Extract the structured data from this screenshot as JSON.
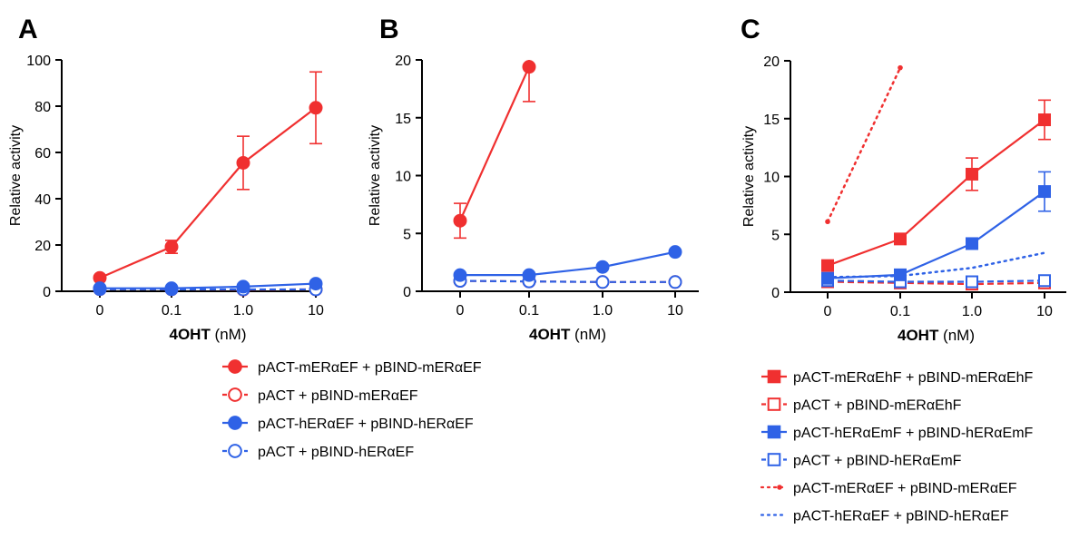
{
  "colors": {
    "red": "#f03030",
    "blue": "#2f62e6",
    "axis": "#000000"
  },
  "chart_data": [
    {
      "panel": "A",
      "type": "line",
      "categories": [
        "0",
        "0.1",
        "1.0",
        "10"
      ],
      "xlabel_bold": "4OHT",
      "xlabel_unit": " (nM)",
      "ylabel": "Relative activity",
      "ylim": [
        0,
        100
      ],
      "yticks": [
        0,
        20,
        40,
        60,
        80,
        100
      ],
      "series": [
        {
          "name": "pACT-mERαEF + pBIND-mERαEF",
          "color": "red",
          "style": "solid",
          "marker": "circle",
          "filled": true,
          "values": [
            5.8,
            19.2,
            55.5,
            79.3
          ],
          "errors": [
            0.8,
            2.8,
            11.5,
            15.5
          ]
        },
        {
          "name": "pACT + pBIND-mERαEF",
          "color": "red",
          "style": "dashed",
          "marker": "circle",
          "filled": false,
          "values": [
            0.9,
            0.85,
            0.7,
            0.8
          ],
          "errors": [
            0,
            0,
            0,
            0
          ]
        },
        {
          "name": "pACT-hERαEF + pBIND-hERαEF",
          "color": "blue",
          "style": "solid",
          "marker": "circle",
          "filled": true,
          "values": [
            1.3,
            1.3,
            2.0,
            3.3
          ],
          "errors": [
            0,
            0,
            0,
            0
          ]
        },
        {
          "name": "pACT + pBIND-hERαEF",
          "color": "blue",
          "style": "dashed",
          "marker": "circle",
          "filled": false,
          "values": [
            0.9,
            0.85,
            0.8,
            0.8
          ],
          "errors": [
            0,
            0,
            0,
            0
          ]
        }
      ]
    },
    {
      "panel": "B",
      "type": "line",
      "categories": [
        "0",
        "0.1",
        "1.0",
        "10"
      ],
      "xlabel_bold": "4OHT",
      "xlabel_unit": " (nM)",
      "ylabel": "Relative activity",
      "ylim": [
        0,
        20
      ],
      "yticks": [
        0,
        5,
        10,
        15,
        20
      ],
      "series": [
        {
          "name": "pACT-mERαEF + pBIND-mERαEF",
          "color": "red",
          "style": "solid",
          "marker": "circle",
          "filled": true,
          "values": [
            6.1,
            19.4,
            null,
            null
          ],
          "errors": [
            1.5,
            3.0,
            0,
            0
          ]
        },
        {
          "name": "pACT + pBIND-mERαEF",
          "color": "red",
          "style": "dashed",
          "marker": "circle",
          "filled": false,
          "values": [
            0.9,
            0.85,
            0.8,
            0.8
          ],
          "errors": [
            0,
            0,
            0,
            0
          ]
        },
        {
          "name": "pACT-hERαEF + pBIND-hERαEF",
          "color": "blue",
          "style": "solid",
          "marker": "circle",
          "filled": true,
          "values": [
            1.4,
            1.4,
            2.1,
            3.4
          ],
          "errors": [
            0,
            0,
            0,
            0
          ]
        },
        {
          "name": "pACT + pBIND-hERαEF",
          "color": "blue",
          "style": "dashed",
          "marker": "circle",
          "filled": false,
          "values": [
            0.9,
            0.85,
            0.8,
            0.8
          ],
          "errors": [
            0,
            0,
            0,
            0
          ]
        }
      ]
    },
    {
      "panel": "C",
      "type": "line",
      "categories": [
        "0",
        "0.1",
        "1.0",
        "10"
      ],
      "xlabel_bold": "4OHT",
      "xlabel_unit": " (nM)",
      "ylabel": "Relative activity",
      "ylim": [
        0,
        20
      ],
      "yticks": [
        0,
        5,
        10,
        15,
        20
      ],
      "series": [
        {
          "name": "pACT-mERαEhF + pBIND-mERαEhF",
          "color": "red",
          "style": "solid",
          "marker": "square",
          "filled": true,
          "values": [
            2.3,
            4.6,
            10.2,
            14.9
          ],
          "errors": [
            0,
            0,
            1.4,
            1.7
          ]
        },
        {
          "name": "pACT + pBIND-mERαEhF",
          "color": "red",
          "style": "dashed",
          "marker": "square",
          "filled": false,
          "values": [
            0.9,
            0.8,
            0.7,
            0.8
          ],
          "errors": [
            0,
            0,
            0,
            0
          ]
        },
        {
          "name": "pACT-hERαEmF + pBIND-hERαEmF",
          "color": "blue",
          "style": "solid",
          "marker": "square",
          "filled": true,
          "values": [
            1.2,
            1.5,
            4.2,
            8.7
          ],
          "errors": [
            0,
            0,
            0,
            1.7
          ]
        },
        {
          "name": "pACT + pBIND-hERαEmF",
          "color": "blue",
          "style": "dashed",
          "marker": "square",
          "filled": false,
          "values": [
            1.0,
            0.9,
            0.9,
            1.0
          ],
          "errors": [
            0,
            0,
            0,
            0
          ]
        },
        {
          "name": "pACT-mERαEF + pBIND-mERαEF",
          "color": "red",
          "style": "dotted",
          "marker": "dot",
          "filled": true,
          "values": [
            6.1,
            19.4,
            null,
            null
          ],
          "errors": [
            0,
            0,
            0,
            0
          ]
        },
        {
          "name": "pACT-hERαEF + pBIND-hERαEF",
          "color": "blue",
          "style": "dotted",
          "marker": "none",
          "filled": true,
          "values": [
            1.3,
            1.4,
            2.1,
            3.4
          ],
          "errors": [
            0,
            0,
            0,
            0
          ]
        }
      ]
    }
  ]
}
